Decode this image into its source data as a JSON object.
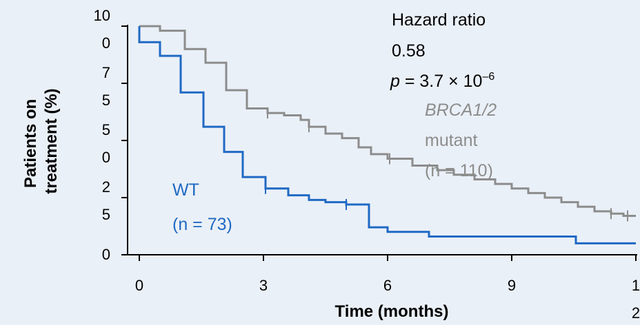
{
  "chart_data": {
    "type": "line",
    "subtype": "kaplan-meier step curve",
    "xlabel": "Time (months)",
    "ylabel_lines": [
      "Patients on",
      "treatment (%)"
    ],
    "x_ticks": [
      {
        "value": 0,
        "lines": [
          "0"
        ]
      },
      {
        "value": 3,
        "lines": [
          "3"
        ]
      },
      {
        "value": 6,
        "lines": [
          "6"
        ]
      },
      {
        "value": 9,
        "lines": [
          "9"
        ]
      },
      {
        "value": 12,
        "lines": [
          "1",
          "2"
        ]
      }
    ],
    "y_ticks": [
      {
        "value": 0,
        "lines": [
          "0"
        ]
      },
      {
        "value": 25,
        "lines": [
          "2",
          "5"
        ]
      },
      {
        "value": 50,
        "lines": [
          "5",
          "0"
        ]
      },
      {
        "value": 75,
        "lines": [
          "7",
          "5"
        ]
      },
      {
        "value": 100,
        "lines": [
          "10",
          "0"
        ]
      }
    ],
    "xlim": [
      0,
      12
    ],
    "ylim": [
      0,
      100
    ],
    "grid": false,
    "annotation": {
      "title": "Hazard ratio",
      "value": "0.58",
      "p_label": "p",
      "p_text": " = 3.7 × 10",
      "p_exponent": "–6"
    },
    "series": [
      {
        "name_lines": [
          "BRCA1/2",
          "mutant",
          "(n = 110)"
        ],
        "color": "#8c8c8c",
        "steps": [
          [
            0,
            100
          ],
          [
            0.5,
            98
          ],
          [
            1.1,
            90
          ],
          [
            1.6,
            84
          ],
          [
            2.1,
            72
          ],
          [
            2.6,
            64
          ],
          [
            3.1,
            62
          ],
          [
            3.5,
            61
          ],
          [
            3.9,
            59
          ],
          [
            4.1,
            56
          ],
          [
            4.5,
            53
          ],
          [
            4.9,
            51
          ],
          [
            5.3,
            47
          ],
          [
            5.6,
            44
          ],
          [
            6.0,
            42
          ],
          [
            6.6,
            39
          ],
          [
            7.2,
            37
          ],
          [
            7.6,
            35
          ],
          [
            8.1,
            33
          ],
          [
            8.6,
            31
          ],
          [
            9.0,
            29
          ],
          [
            9.4,
            27
          ],
          [
            9.8,
            25
          ],
          [
            10.2,
            23
          ],
          [
            10.6,
            21
          ],
          [
            11.0,
            19
          ],
          [
            11.4,
            18
          ],
          [
            11.7,
            17
          ],
          [
            12.0,
            17
          ]
        ],
        "censor_x": [
          3.1,
          4.1,
          6.05,
          11.4,
          11.8
        ]
      },
      {
        "name_lines": [
          "WT",
          "(n = 73)"
        ],
        "color": "#1f69c4",
        "steps": [
          [
            0,
            100
          ],
          [
            0,
            93
          ],
          [
            0.5,
            87
          ],
          [
            1.0,
            71
          ],
          [
            1.55,
            56
          ],
          [
            2.05,
            45
          ],
          [
            2.5,
            34
          ],
          [
            3.05,
            29
          ],
          [
            3.6,
            26
          ],
          [
            4.1,
            24
          ],
          [
            4.5,
            23
          ],
          [
            5.0,
            22
          ],
          [
            5.55,
            12
          ],
          [
            6.0,
            10
          ],
          [
            7.0,
            8
          ],
          [
            9.0,
            8
          ],
          [
            10.55,
            5
          ],
          [
            12.0,
            5
          ]
        ],
        "censor_x": [
          3.05,
          5.0
        ]
      }
    ]
  }
}
